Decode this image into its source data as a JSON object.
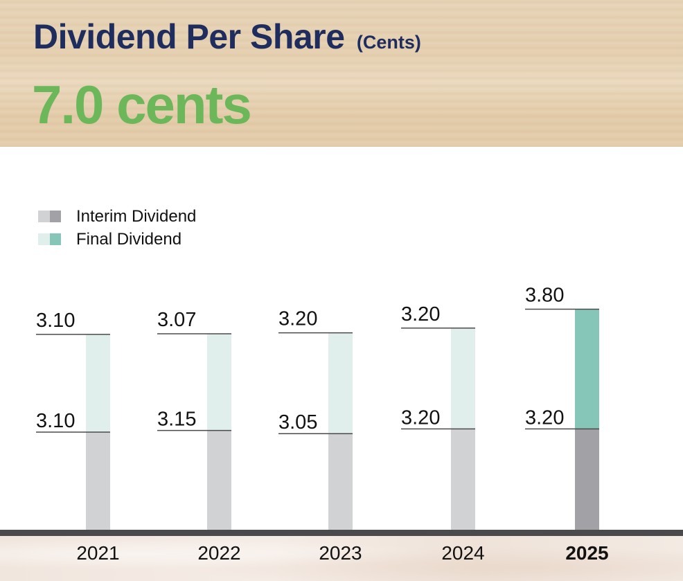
{
  "header": {
    "title": "Dividend Per Share",
    "title_unit": "(Cents)",
    "headline_value": "7.0 cents"
  },
  "colors": {
    "title": "#1f2d5e",
    "headline": "#6bb75a",
    "interim_past": "#d1d2d4",
    "interim_current": "#a2a2a6",
    "final_past": "#e0efec",
    "final_current": "#86c6b9",
    "axis": "#4a4a4c"
  },
  "legend": [
    {
      "label": "Interim Dividend",
      "colors": [
        "#d1d2d4",
        "#a2a2a6"
      ]
    },
    {
      "label": "Final Dividend",
      "colors": [
        "#e0efec",
        "#86c6b9"
      ]
    }
  ],
  "chart_data": {
    "type": "bar",
    "stacked": true,
    "title": "Dividend Per Share (Cents)",
    "xlabel": "",
    "ylabel": "",
    "categories": [
      "2021",
      "2022",
      "2023",
      "2024",
      "2025"
    ],
    "highlight_category": "2025",
    "series": [
      {
        "name": "Interim Dividend",
        "values": [
          3.1,
          3.15,
          3.05,
          3.2,
          3.2
        ],
        "labels": [
          "3.10",
          "3.15",
          "3.05",
          "3.20",
          "3.20"
        ]
      },
      {
        "name": "Final Dividend",
        "values": [
          3.1,
          3.07,
          3.2,
          3.2,
          3.8
        ],
        "labels": [
          "3.10",
          "3.07",
          "3.20",
          "3.20",
          "3.80"
        ]
      }
    ],
    "grid": false,
    "legend_position": "top-left",
    "ylim": [
      0,
      7.0
    ]
  }
}
